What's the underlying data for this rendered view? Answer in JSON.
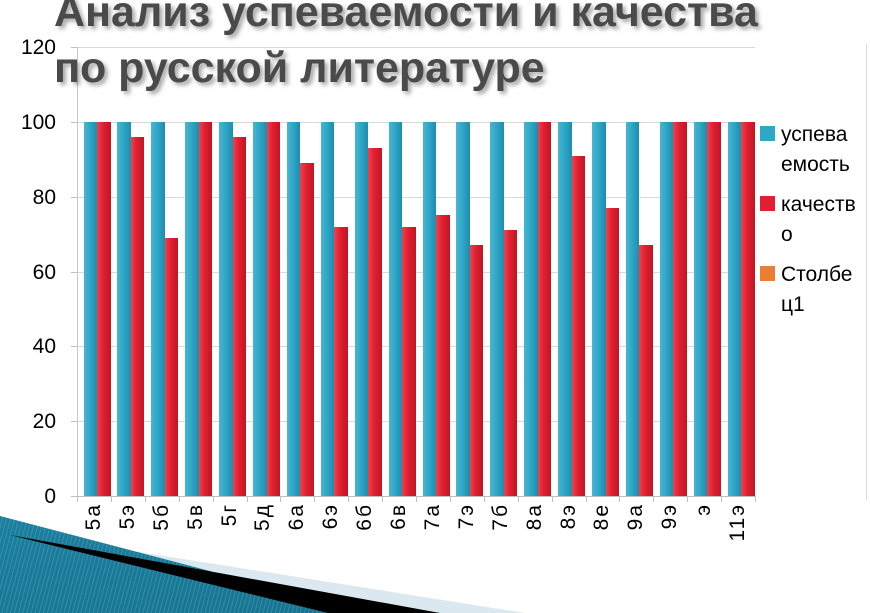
{
  "title": {
    "line1": "Анализ успеваемости и качества",
    "line2": "по русской литературе"
  },
  "chart_data": {
    "type": "bar",
    "title": "Анализ успеваемости и качества по русской литературе",
    "categories": [
      "5а",
      "5э",
      "5б",
      "5в",
      "5г",
      "5д",
      "6а",
      "6э",
      "6б",
      "6в",
      "7а",
      "7э",
      "7б",
      "8а",
      "8э",
      "8е",
      "9а",
      "9э",
      "э",
      "11э"
    ],
    "series": [
      {
        "name": "успеваемость",
        "color_class": "s0",
        "color": "#2fa7c7",
        "values": [
          100,
          100,
          100,
          100,
          100,
          100,
          100,
          100,
          100,
          100,
          100,
          100,
          100,
          100,
          100,
          100,
          100,
          100,
          100,
          100
        ]
      },
      {
        "name": "качество",
        "color_class": "s1",
        "color": "#e01f30",
        "values": [
          100,
          96,
          69,
          100,
          96,
          100,
          89,
          72,
          93,
          72,
          75,
          67,
          71,
          100,
          91,
          77,
          67,
          100,
          100,
          100
        ]
      },
      {
        "name": "Столбец1",
        "color_class": "s2",
        "color": "#ed7d31",
        "values": [
          0,
          0,
          0,
          0,
          0,
          0,
          0,
          0,
          0,
          0,
          0,
          0,
          0,
          0,
          0,
          0,
          0,
          0,
          0,
          0
        ]
      }
    ],
    "xlabel": "",
    "ylabel": "",
    "ylim": [
      0,
      120
    ],
    "yticks": [
      0,
      20,
      40,
      60,
      80,
      100,
      120
    ],
    "grid": true,
    "legend_position": "right"
  },
  "legend": {
    "items": [
      {
        "line1": "успева",
        "line2": "емость",
        "color": "#2fa7c7"
      },
      {
        "line1": "качеств",
        "line2": "о",
        "color": "#e01f30"
      },
      {
        "line1": "Столбе",
        "line2": "ц1",
        "color": "#ed7d31"
      }
    ]
  },
  "colors": {
    "series_teal": "#2fa7c7",
    "series_red": "#e01f30",
    "series_orange": "#ed7d31",
    "gridline": "#d9d9d9",
    "title_text": "#4a4a4a",
    "deco_teal": "#1f8cab",
    "deco_pale": "#dce8ef",
    "deco_black": "#000000"
  }
}
